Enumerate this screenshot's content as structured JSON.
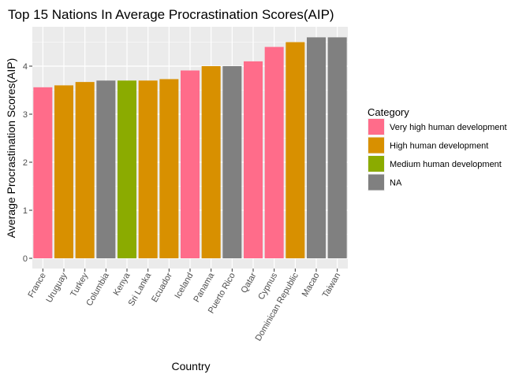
{
  "chart_data": {
    "type": "bar",
    "title": "Top 15 Nations In Average Procrastination Scores(AIP)",
    "xlabel": "Country",
    "ylabel": "Average Procrastination Scores(AIP)",
    "ylim": [
      0,
      4.6
    ],
    "yticks": [
      0,
      1,
      2,
      3,
      4
    ],
    "grid": true,
    "legend_position": "right",
    "categories": [
      "France",
      "Uruguay",
      "Turkey",
      "Columbia",
      "Kenya",
      "Sri Lanka",
      "Ecuador",
      "Iceland",
      "Panama",
      "Puerto Rico",
      "Qatar",
      "Cypnus",
      "Dominican Republic",
      "Macao",
      "Taiwan"
    ],
    "values": [
      3.56,
      3.6,
      3.67,
      3.7,
      3.7,
      3.7,
      3.73,
      3.91,
      4.0,
      4.0,
      4.1,
      4.4,
      4.5,
      4.6,
      4.6
    ],
    "groups": [
      "Very high human development",
      "High human development",
      "High human development",
      "NA",
      "Medium human development",
      "High human development",
      "High human development",
      "Very high human development",
      "High human development",
      "NA",
      "Very high human development",
      "Very high human development",
      "High human development",
      "NA",
      "NA"
    ],
    "legend": {
      "title": "Category",
      "entries": [
        {
          "label": "Very high human development",
          "color": "#ff6c8a"
        },
        {
          "label": "High human development",
          "color": "#d89000"
        },
        {
          "label": "Medium human development",
          "color": "#8bab00"
        },
        {
          "label": "NA",
          "color": "#808080"
        }
      ]
    },
    "panel_background": "#ebebeb",
    "grid_color": "#ffffff"
  }
}
